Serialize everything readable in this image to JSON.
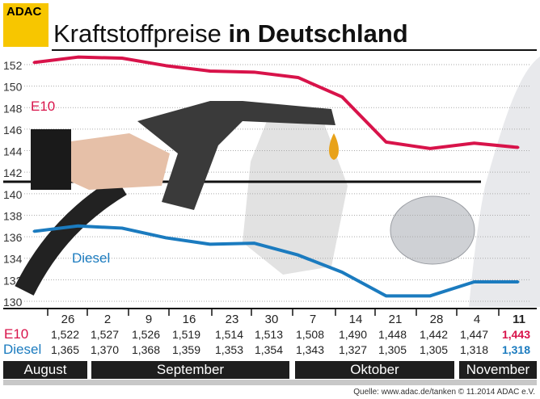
{
  "header": {
    "logo": "ADAC",
    "title_regular": "Kraftstoffpreise ",
    "title_bold": "in Deutschland"
  },
  "colors": {
    "e10": "#d8134a",
    "diesel": "#1b7bbf",
    "logo": "#f7c600"
  },
  "chart_data": {
    "type": "line",
    "title": "Kraftstoffpreise in Deutschland",
    "categories": [
      "26",
      "2",
      "9",
      "16",
      "23",
      "30",
      "7",
      "14",
      "21",
      "28",
      "4",
      "11"
    ],
    "y_ticks": [
      152,
      150,
      148,
      146,
      144,
      142,
      140,
      138,
      136,
      134,
      132,
      130
    ],
    "ylim": [
      130,
      152
    ],
    "grid": true,
    "series": [
      {
        "name": "E10",
        "values": [
          1.522,
          1.527,
          1.526,
          1.519,
          1.514,
          1.513,
          1.508,
          1.49,
          1.448,
          1.442,
          1.447,
          1.443
        ],
        "labels": [
          "1,522",
          "1,527",
          "1,526",
          "1,519",
          "1,514",
          "1,513",
          "1,508",
          "1,490",
          "1,448",
          "1,442",
          "1,447",
          "1,443"
        ]
      },
      {
        "name": "Diesel",
        "values": [
          1.365,
          1.37,
          1.368,
          1.359,
          1.353,
          1.354,
          1.343,
          1.327,
          1.305,
          1.305,
          1.318,
          1.318
        ],
        "labels": [
          "1,365",
          "1,370",
          "1,368",
          "1,359",
          "1,353",
          "1,354",
          "1,343",
          "1,327",
          "1,305",
          "1,305",
          "1,318",
          "1,318"
        ]
      }
    ],
    "months": [
      "August",
      "September",
      "Oktober",
      "November"
    ]
  },
  "footer": "Quelle: www.adac.de/tanken  © 11.2014  ADAC e.V."
}
